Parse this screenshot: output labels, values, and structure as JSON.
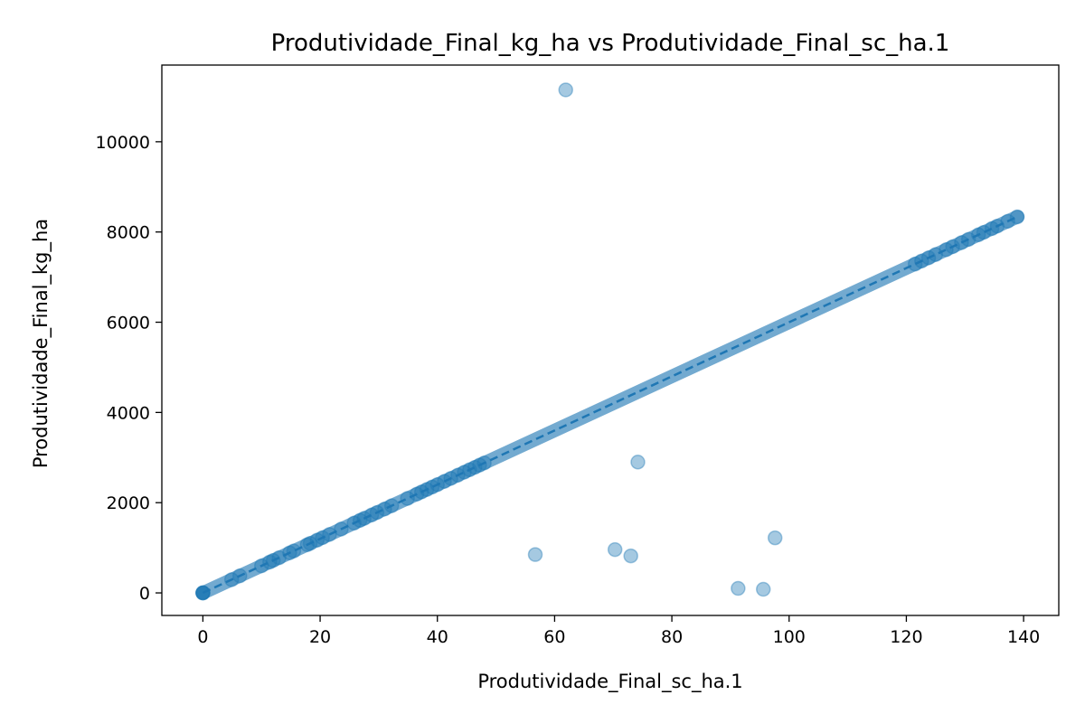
{
  "chart_data": {
    "type": "scatter",
    "title": "Produtividade_Final_kg_ha vs Produtividade_Final_sc_ha.1",
    "xlabel": "Produtividade_Final_sc_ha.1",
    "ylabel": "Produtividade_Final_kg_ha",
    "xlim": [
      -7,
      146
    ],
    "ylim": [
      -500,
      11700
    ],
    "xticks": [
      0,
      20,
      40,
      60,
      80,
      100,
      120,
      140
    ],
    "yticks": [
      0,
      2000,
      4000,
      6000,
      8000,
      10000
    ],
    "grid": false,
    "legend": "none",
    "marker_color": "#1f77b4",
    "marker_alpha": 0.4,
    "trend_line": {
      "style": "dashed",
      "x": [
        0,
        139
      ],
      "slope": 60,
      "intercept": 0
    },
    "main_cluster": {
      "x_start": 0,
      "x_end": 139,
      "y_per_x": 60
    },
    "points": [
      {
        "x": 0,
        "y": 0
      },
      {
        "x": 0,
        "y": 0
      },
      {
        "x": 0,
        "y": 0
      },
      {
        "x": 0,
        "y": 0
      },
      {
        "x": 4.9,
        "y": 294
      },
      {
        "x": 6.3,
        "y": 378
      },
      {
        "x": 10.0,
        "y": 600
      },
      {
        "x": 11.4,
        "y": 684
      },
      {
        "x": 12.0,
        "y": 720
      },
      {
        "x": 13.0,
        "y": 780
      },
      {
        "x": 14.8,
        "y": 888
      },
      {
        "x": 15.5,
        "y": 930
      },
      {
        "x": 17.8,
        "y": 1068
      },
      {
        "x": 18.3,
        "y": 1098
      },
      {
        "x": 19.5,
        "y": 1170
      },
      {
        "x": 20.4,
        "y": 1224
      },
      {
        "x": 21.6,
        "y": 1296
      },
      {
        "x": 23.6,
        "y": 1416
      },
      {
        "x": 25.8,
        "y": 1548
      },
      {
        "x": 26.8,
        "y": 1608
      },
      {
        "x": 27.5,
        "y": 1650
      },
      {
        "x": 28.8,
        "y": 1728
      },
      {
        "x": 29.7,
        "y": 1782
      },
      {
        "x": 31.0,
        "y": 1860
      },
      {
        "x": 32.2,
        "y": 1932
      },
      {
        "x": 34.9,
        "y": 2094
      },
      {
        "x": 36.5,
        "y": 2190
      },
      {
        "x": 37.3,
        "y": 2238
      },
      {
        "x": 38.2,
        "y": 2292
      },
      {
        "x": 39.1,
        "y": 2346
      },
      {
        "x": 40.0,
        "y": 2400
      },
      {
        "x": 41.2,
        "y": 2472
      },
      {
        "x": 42.3,
        "y": 2538
      },
      {
        "x": 43.5,
        "y": 2610
      },
      {
        "x": 44.6,
        "y": 2676
      },
      {
        "x": 45.5,
        "y": 2730
      },
      {
        "x": 46.4,
        "y": 2784
      },
      {
        "x": 47.2,
        "y": 2832
      },
      {
        "x": 48.0,
        "y": 2880
      },
      {
        "x": 121.5,
        "y": 7290
      },
      {
        "x": 122.6,
        "y": 7356
      },
      {
        "x": 123.8,
        "y": 7428
      },
      {
        "x": 125.0,
        "y": 7500
      },
      {
        "x": 126.8,
        "y": 7608
      },
      {
        "x": 127.9,
        "y": 7674
      },
      {
        "x": 129.4,
        "y": 7764
      },
      {
        "x": 130.6,
        "y": 7836
      },
      {
        "x": 132.3,
        "y": 7938
      },
      {
        "x": 133.2,
        "y": 7992
      },
      {
        "x": 134.6,
        "y": 8076
      },
      {
        "x": 135.5,
        "y": 8130
      },
      {
        "x": 137.3,
        "y": 8238
      },
      {
        "x": 138.9,
        "y": 8334
      },
      {
        "x": 61.9,
        "y": 11150
      },
      {
        "x": 74.2,
        "y": 2900
      },
      {
        "x": 56.7,
        "y": 850
      },
      {
        "x": 70.3,
        "y": 960
      },
      {
        "x": 73.0,
        "y": 820
      },
      {
        "x": 97.6,
        "y": 1220
      },
      {
        "x": 91.3,
        "y": 100
      },
      {
        "x": 95.6,
        "y": 80
      }
    ]
  }
}
